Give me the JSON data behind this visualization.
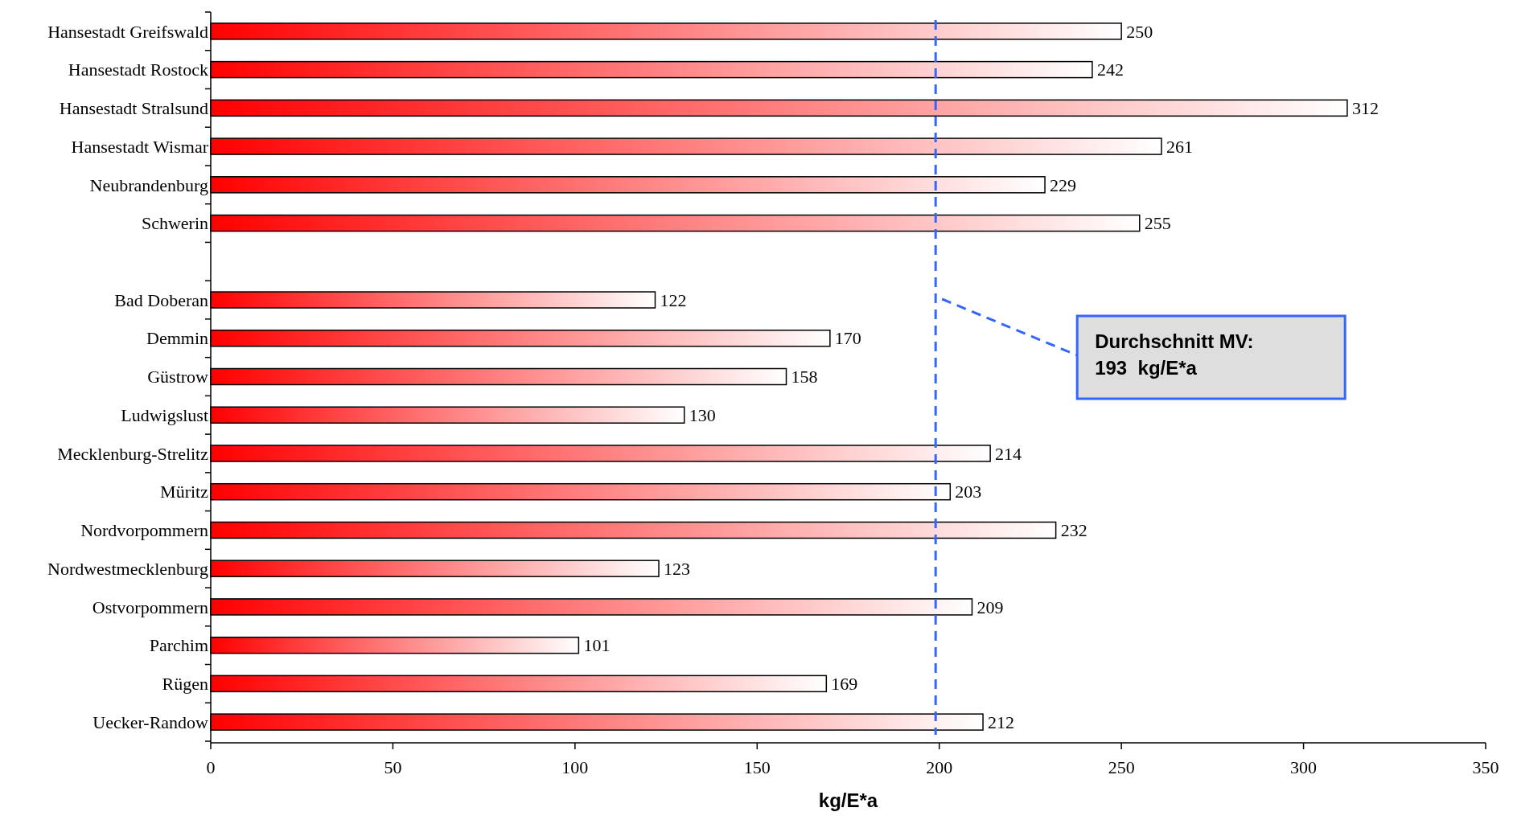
{
  "chart_data": {
    "type": "bar",
    "orientation": "horizontal",
    "xlabel": "kg/E*a",
    "categories": [
      "Hansestadt Greifswald",
      "Hansestadt Rostock",
      "Hansestadt Stralsund",
      "Hansestadt Wismar",
      "Neubrandenburg",
      "Schwerin",
      null,
      "Bad Doberan",
      "Demmin",
      "Güstrow",
      "Ludwigslust",
      "Mecklenburg-Strelitz",
      "Müritz",
      "Nordvorpommern",
      "Nordwestmecklenburg",
      "Ostvorpommern",
      "Parchim",
      "Rügen",
      "Uecker-Randow"
    ],
    "values": [
      250,
      242,
      312,
      261,
      229,
      255,
      null,
      122,
      170,
      158,
      130,
      214,
      203,
      232,
      123,
      209,
      101,
      169,
      212
    ],
    "color": "#ff0000",
    "data_labels": true,
    "xlim": [
      0,
      350
    ],
    "xticks": [
      0,
      50,
      100,
      150,
      200,
      250,
      300,
      350
    ],
    "grid": false,
    "annotations": [
      "Durchschnitt MV:\n193  kg/E*a"
    ],
    "ref_lines": [
      {
        "axis": "x",
        "value": 199,
        "color": "#3366ff",
        "line_style": "dashed"
      }
    ]
  }
}
